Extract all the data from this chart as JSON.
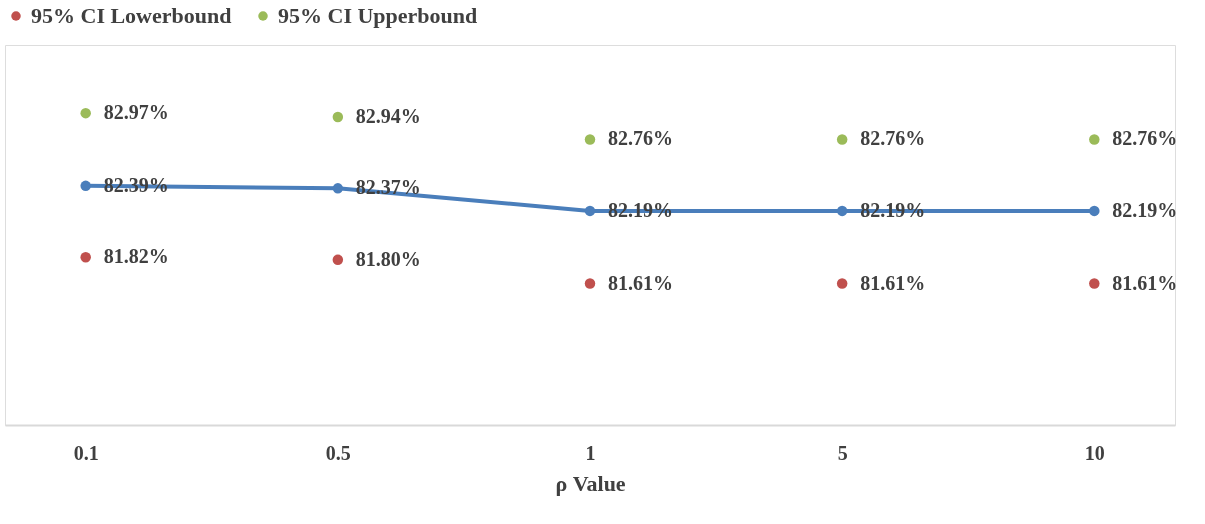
{
  "chart_data": {
    "type": "line",
    "xlabel": "ρ Value",
    "categories": [
      "0.1",
      "0.5",
      "1",
      "5",
      "10"
    ],
    "series": [
      {
        "color": "#4a7ebb",
        "values": [
          82.39,
          82.37,
          82.19,
          82.19,
          82.19
        ],
        "value_labels": [
          "82.39%",
          "82.37%",
          "82.19%",
          "82.19%",
          "82.19%"
        ]
      },
      {
        "type": "scatter",
        "name": "95% CI Lowerbound",
        "color": "#c0504d",
        "values": [
          81.82,
          81.8,
          81.61,
          81.61,
          81.61
        ],
        "value_labels": [
          "81.82%",
          "81.80%",
          "81.61%",
          "81.61%",
          "81.61%"
        ]
      },
      {
        "type": "scatter",
        "name": "95% CI Upperbound",
        "color": "#9bbb59",
        "values": [
          82.97,
          82.94,
          82.76,
          82.76,
          82.76
        ],
        "value_labels": [
          "82.97%",
          "82.94%",
          "82.76%",
          "82.76%",
          "82.76%"
        ]
      }
    ],
    "marker": "circle",
    "legend": "top",
    "grid": false
  }
}
